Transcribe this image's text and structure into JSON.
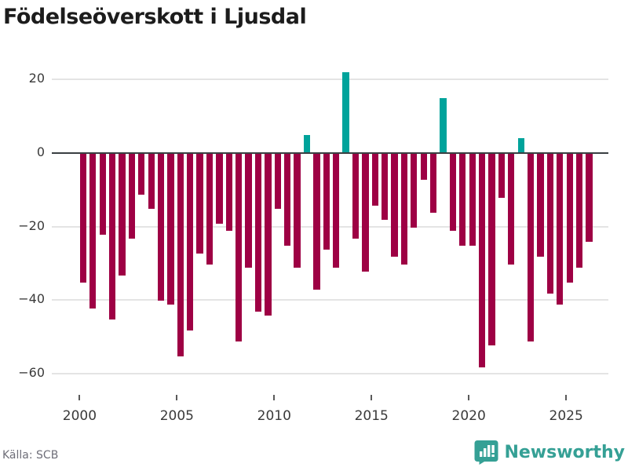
{
  "title": "Födelseöverskott i Ljusdal",
  "footer": {
    "source_label": "Källa: SCB",
    "brand_name": "Newsworthy"
  },
  "colors": {
    "negative_bar": "#9e0044",
    "positive_bar": "#00a39b",
    "zero_line": "#3a3f42",
    "gridline": "#e4e4e4",
    "brand_teal": "#35a095",
    "axis_text": "#3a3a3a",
    "source_text": "#6e6e78"
  },
  "chart_data": {
    "type": "bar",
    "title": "Födelseöverskott i Ljusdal",
    "xlabel": "",
    "ylabel": "",
    "grid": "horizontal",
    "legend": "none",
    "ylim": [
      -62,
      23
    ],
    "yticks": [
      20,
      0,
      -20,
      -40,
      -60
    ],
    "xticks": [
      2000,
      2005,
      2010,
      2015,
      2020,
      2025
    ],
    "period_unit": "half-year",
    "categories": [
      "2000 H1",
      "2000 H2",
      "2001 H1",
      "2001 H2",
      "2002 H1",
      "2002 H2",
      "2003 H1",
      "2003 H2",
      "2004 H1",
      "2004 H2",
      "2005 H1",
      "2005 H2",
      "2006 H1",
      "2006 H2",
      "2007 H1",
      "2007 H2",
      "2008 H1",
      "2008 H2",
      "2009 H1",
      "2009 H2",
      "2010 H1",
      "2010 H2",
      "2011 H1",
      "2011 H2",
      "2012 H1",
      "2012 H2",
      "2013 H1",
      "2013 H2",
      "2014 H1",
      "2014 H2",
      "2015 H1",
      "2015 H2",
      "2016 H1",
      "2016 H2",
      "2017 H1",
      "2017 H2",
      "2018 H1",
      "2018 H2",
      "2019 H1",
      "2019 H2",
      "2020 H1",
      "2020 H2",
      "2021 H1",
      "2021 H2",
      "2022 H1",
      "2022 H2",
      "2023 H1",
      "2023 H2",
      "2024 H1",
      "2024 H2",
      "2025 H1",
      "2025 H2",
      "2026 H1"
    ],
    "values": [
      -35,
      -42,
      -22,
      -45,
      -33,
      -23,
      -11,
      -15,
      -40,
      -41,
      -55,
      -48,
      -27,
      -30,
      -19,
      -21,
      -51,
      -31,
      -43,
      -44,
      -15,
      -25,
      -31,
      5,
      -37,
      -26,
      -31,
      22,
      -23,
      -32,
      -14,
      -18,
      -28,
      -30,
      -20,
      -7,
      -16,
      15,
      -21,
      -25,
      -25,
      -58,
      -52,
      -12,
      -30,
      4,
      -51,
      -28,
      -38,
      -41,
      -35,
      -31,
      -24
    ]
  }
}
